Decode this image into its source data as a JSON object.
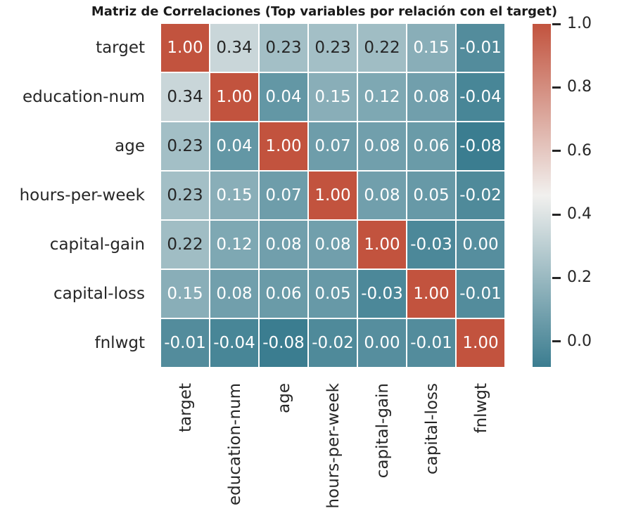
{
  "chart_data": {
    "type": "heatmap",
    "title": "Matriz de Correlaciones (Top variables por relación con el target)",
    "categories": [
      "target",
      "education-num",
      "age",
      "hours-per-week",
      "capital-gain",
      "capital-loss",
      "fnlwgt"
    ],
    "matrix": [
      [
        1.0,
        0.34,
        0.23,
        0.23,
        0.22,
        0.15,
        -0.01
      ],
      [
        0.34,
        1.0,
        0.04,
        0.15,
        0.12,
        0.08,
        -0.04
      ],
      [
        0.23,
        0.04,
        1.0,
        0.07,
        0.08,
        0.06,
        -0.08
      ],
      [
        0.23,
        0.15,
        0.07,
        1.0,
        0.08,
        0.05,
        -0.02
      ],
      [
        0.22,
        0.12,
        0.08,
        0.08,
        1.0,
        -0.03,
        0.0
      ],
      [
        0.15,
        0.08,
        0.06,
        0.05,
        -0.03,
        1.0,
        -0.01
      ],
      [
        -0.01,
        -0.04,
        -0.08,
        -0.02,
        0.0,
        -0.01,
        1.0
      ]
    ],
    "value_format": "0.00",
    "vmin": -0.08,
    "vmax": 1.0,
    "grid": true,
    "colorbar": {
      "position": "right",
      "tick_labels": [
        "1.0",
        "0.8",
        "0.6",
        "0.4",
        "0.2",
        "0.0"
      ],
      "tick_values": [
        1.0,
        0.8,
        0.6,
        0.4,
        0.2,
        0.0
      ]
    },
    "colors": {
      "low": "#3b7d90",
      "mid": "#f1f0ee",
      "high": "#c2533e",
      "gridline": "#ffffff",
      "annot_dark": "#262626",
      "annot_light": "#ffffff",
      "tick_text": "#262626",
      "title_text": "#1a1a1a"
    }
  }
}
